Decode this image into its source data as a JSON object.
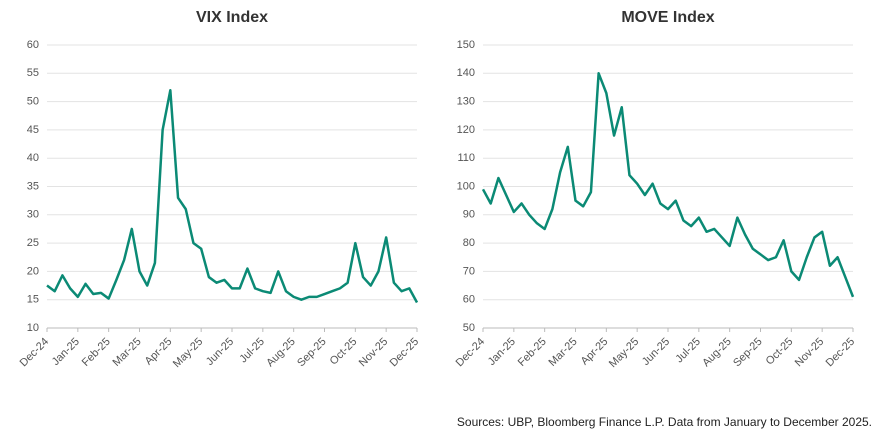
{
  "chart_data": [
    {
      "type": "line",
      "title": "VIX Index",
      "categories": [
        "Dec-24",
        null,
        null,
        null,
        "Jan-25",
        null,
        null,
        null,
        "Feb-25",
        null,
        null,
        null,
        "Mar-25",
        null,
        null,
        null,
        "Apr-25",
        null,
        null,
        null,
        "May-25",
        null,
        null,
        null,
        "Jun-25",
        null,
        null,
        null,
        "Jul-25",
        null,
        null,
        null,
        "Aug-25",
        null,
        null,
        null,
        "Sep-25",
        null,
        null,
        null,
        "Oct-25",
        null,
        null,
        null,
        "Nov-25",
        null,
        null,
        null,
        "Dec-25"
      ],
      "series": [
        {
          "name": "VIX Index",
          "color": "#0b8a75",
          "values": [
            17.5,
            16.5,
            19.3,
            17,
            15.5,
            17.8,
            16,
            16.2,
            15.2,
            18.5,
            22,
            27.5,
            20,
            17.5,
            21.5,
            45,
            52,
            33,
            31,
            25,
            24,
            19,
            18,
            18.5,
            17,
            17,
            20.5,
            17,
            16.5,
            16.2,
            20,
            16.5,
            15.5,
            15,
            15.5,
            15.5,
            16,
            16.5,
            17,
            18,
            25,
            19,
            17.5,
            20,
            26,
            18,
            16.5,
            17,
            14.5
          ]
        }
      ],
      "ylim": [
        10,
        60
      ],
      "yticks": [
        10,
        15,
        20,
        25,
        30,
        35,
        40,
        45,
        50,
        55,
        60
      ],
      "grid": true
    },
    {
      "type": "line",
      "title": "MOVE Index",
      "categories": [
        "Dec-24",
        null,
        null,
        null,
        "Jan-25",
        null,
        null,
        null,
        "Feb-25",
        null,
        null,
        null,
        "Mar-25",
        null,
        null,
        null,
        "Apr-25",
        null,
        null,
        null,
        "May-25",
        null,
        null,
        null,
        "Jun-25",
        null,
        null,
        null,
        "Jul-25",
        null,
        null,
        null,
        "Aug-25",
        null,
        null,
        null,
        "Sep-25",
        null,
        null,
        null,
        "Oct-25",
        null,
        null,
        null,
        "Nov-25",
        null,
        null,
        null,
        "Dec-25"
      ],
      "series": [
        {
          "name": "MOVE Index",
          "color": "#0b8a75",
          "values": [
            99,
            94,
            103,
            97,
            91,
            94,
            90,
            87,
            85,
            92,
            105,
            114,
            95,
            93,
            98,
            140,
            133,
            118,
            128,
            104,
            101,
            97,
            101,
            94,
            92,
            95,
            88,
            86,
            89,
            84,
            85,
            82,
            79,
            89,
            83,
            78,
            76,
            74,
            75,
            81,
            70,
            67,
            75,
            82,
            84,
            72,
            75,
            68,
            61
          ]
        }
      ],
      "ylim": [
        50,
        150
      ],
      "yticks": [
        50,
        60,
        70,
        80,
        90,
        100,
        110,
        120,
        130,
        140,
        150
      ],
      "grid": true
    }
  ],
  "source": "Sources: UBP, Bloomberg Finance L.P. Data from January to December 2025."
}
